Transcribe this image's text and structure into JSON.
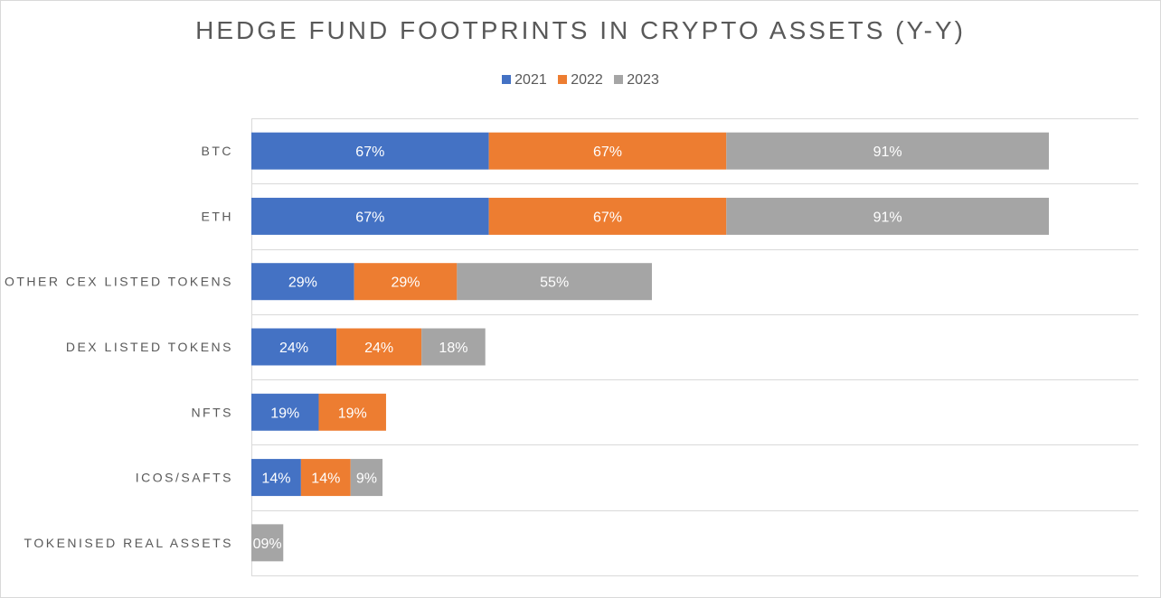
{
  "chart_data": {
    "type": "bar",
    "orientation": "horizontal",
    "stacked": true,
    "title": "HEDGE FUND FOOTPRINTS IN CRYPTO ASSETS (Y-Y)",
    "categories": [
      "BTC",
      "ETH",
      "OTHER CEX LISTED TOKENS",
      "DEX LISTED TOKENS",
      "NFTS",
      "ICOS/SAFTS",
      "TOKENISED REAL ASSETS"
    ],
    "series": [
      {
        "name": "2021",
        "color": "#4472c4",
        "values": [
          67,
          67,
          29,
          24,
          19,
          14,
          0
        ],
        "labels": [
          "67%",
          "67%",
          "29%",
          "24%",
          "19%",
          "14%",
          ""
        ]
      },
      {
        "name": "2022",
        "color": "#ed7d31",
        "values": [
          67,
          67,
          29,
          24,
          19,
          14,
          0
        ],
        "labels": [
          "67%",
          "67%",
          "29%",
          "24%",
          "19%",
          "14%",
          ""
        ]
      },
      {
        "name": "2023",
        "color": "#a5a5a5",
        "values": [
          91,
          91,
          55,
          18,
          0,
          9,
          9
        ],
        "labels": [
          "91%",
          "91%",
          "55%",
          "18%",
          "",
          "9%",
          "09%"
        ]
      }
    ],
    "xlim": [
      0,
      250
    ],
    "grid": true,
    "legend_position": "top",
    "xlabel": "",
    "ylabel": ""
  }
}
